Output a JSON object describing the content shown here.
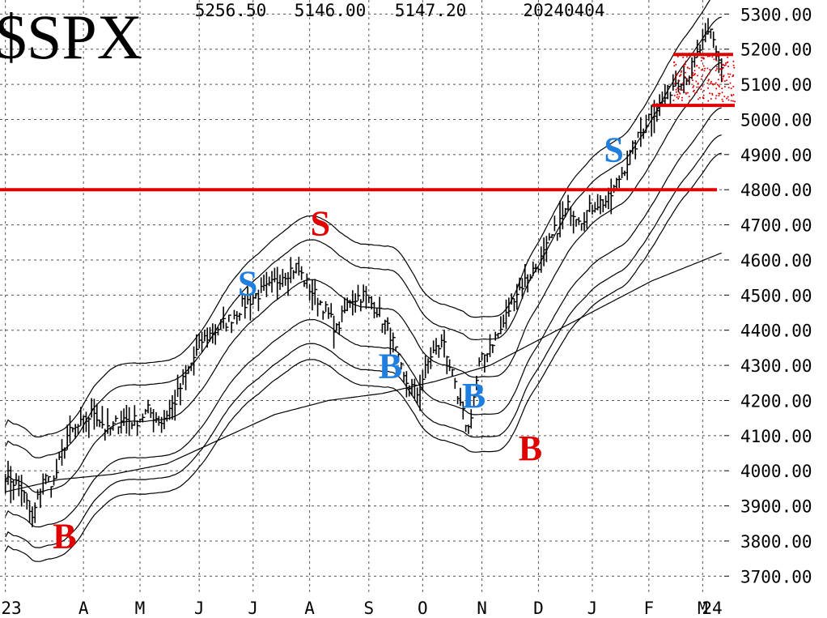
{
  "chart_data": {
    "type": "line",
    "title": "$SPX",
    "header_values": [
      "5256.50",
      "5146.00",
      "5147.20",
      "20240404"
    ],
    "ylim": [
      3650,
      5340
    ],
    "yticks": [
      {
        "v": 3700,
        "label": "3700.00"
      },
      {
        "v": 3800,
        "label": "3800.00"
      },
      {
        "v": 3900,
        "label": "3900.00"
      },
      {
        "v": 4000,
        "label": "4000.00"
      },
      {
        "v": 4100,
        "label": "4100.00"
      },
      {
        "v": 4200,
        "label": "4200.00"
      },
      {
        "v": 4300,
        "label": "4300.00"
      },
      {
        "v": 4400,
        "label": "4400.00"
      },
      {
        "v": 4500,
        "label": "4500.00"
      },
      {
        "v": 4600,
        "label": "4600.00"
      },
      {
        "v": 4700,
        "label": "4700.00"
      },
      {
        "v": 4800,
        "label": "4800.00"
      },
      {
        "v": 4900,
        "label": "4900.00"
      },
      {
        "v": 5000,
        "label": "5000.00"
      },
      {
        "v": 5100,
        "label": "5100.00"
      },
      {
        "v": 5200,
        "label": "5200.00"
      },
      {
        "v": 5300,
        "label": "5300.00"
      }
    ],
    "xlim": [
      -2,
      267
    ],
    "xticks": [
      {
        "d": 0,
        "label": "23"
      },
      {
        "d": 29,
        "label": "A"
      },
      {
        "d": 50,
        "label": "M"
      },
      {
        "d": 72,
        "label": "J"
      },
      {
        "d": 92,
        "label": "J"
      },
      {
        "d": 113,
        "label": "A"
      },
      {
        "d": 135,
        "label": "S"
      },
      {
        "d": 155,
        "label": "O"
      },
      {
        "d": 177,
        "label": "N"
      },
      {
        "d": 198,
        "label": "D"
      },
      {
        "d": 218,
        "label": "J"
      },
      {
        "d": 239,
        "label": "F"
      },
      {
        "d": 259,
        "label": "M"
      },
      {
        "d": 280,
        "label": "24"
      }
    ],
    "gridlines": true,
    "price": {
      "d": [
        0,
        6,
        10,
        14,
        18,
        23,
        28,
        33,
        38,
        43,
        48,
        53,
        58,
        63,
        68,
        73,
        78,
        83,
        88,
        93,
        98,
        103,
        108,
        113,
        118,
        123,
        128,
        133,
        138,
        143,
        148,
        153,
        158,
        163,
        168,
        172,
        176,
        180,
        184,
        189,
        194,
        199,
        204,
        209,
        214,
        219,
        224,
        229,
        234,
        239,
        244,
        249,
        254,
        258,
        262,
        266
      ],
      "close": [
        3990,
        3950,
        3860,
        3980,
        3970,
        4100,
        4130,
        4170,
        4110,
        4150,
        4140,
        4170,
        4140,
        4200,
        4290,
        4370,
        4400,
        4430,
        4470,
        4500,
        4520,
        4560,
        4580,
        4520,
        4470,
        4400,
        4490,
        4500,
        4460,
        4390,
        4260,
        4220,
        4330,
        4370,
        4200,
        4120,
        4300,
        4360,
        4400,
        4500,
        4550,
        4600,
        4680,
        4750,
        4720,
        4760,
        4770,
        4850,
        4930,
        5010,
        5050,
        5110,
        5130,
        5200,
        5250,
        5147
      ]
    },
    "ma200": {
      "d": [
        0,
        20,
        40,
        60,
        80,
        100,
        120,
        140,
        160,
        180,
        200,
        220,
        240,
        266
      ],
      "values": [
        3940,
        3975,
        3990,
        4020,
        4090,
        4160,
        4200,
        4220,
        4255,
        4300,
        4380,
        4460,
        4540,
        4620
      ]
    },
    "series": [],
    "hlines": [
      4800,
      5185,
      5040
    ],
    "annotations": [
      {
        "text": "S",
        "color": "blue",
        "d": 90,
        "price": 4500
      },
      {
        "text": "S",
        "color": "red",
        "d": 117,
        "price": 4670
      },
      {
        "text": "S",
        "color": "blue",
        "d": 226,
        "price": 4880
      },
      {
        "text": "B",
        "color": "red",
        "d": 22,
        "price": 3780
      },
      {
        "text": "B",
        "color": "blue",
        "d": 143,
        "price": 4265
      },
      {
        "text": "B",
        "color": "blue",
        "d": 174,
        "price": 4180
      },
      {
        "text": "B",
        "color": "red",
        "d": 195,
        "price": 4030
      }
    ],
    "colors": {
      "price": "#000000",
      "bands": "#000000",
      "grid": "#555555",
      "red": "#e00000",
      "blue": "#1f7fe0"
    }
  }
}
